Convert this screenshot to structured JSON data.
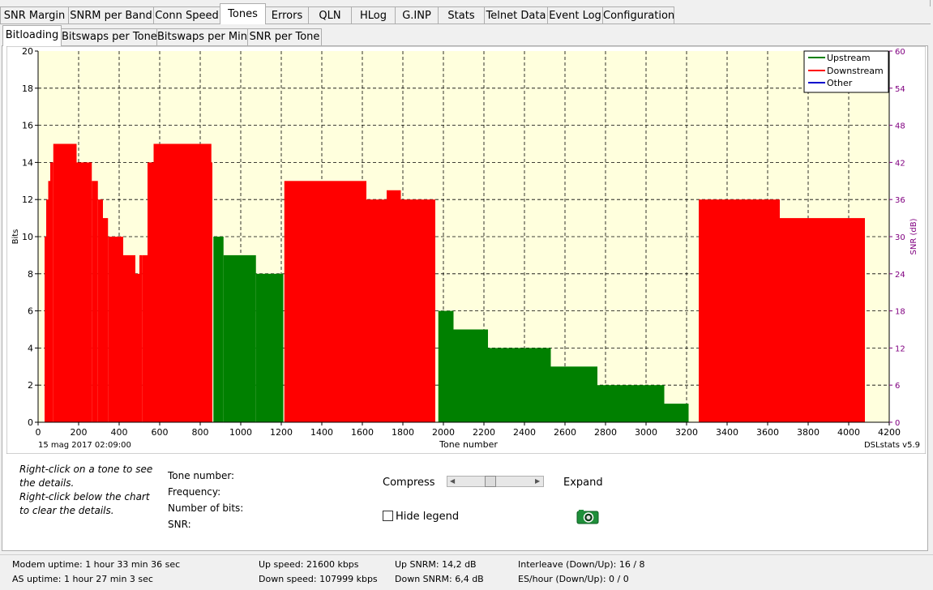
{
  "tabs": [
    {
      "label": "SNR Margin"
    },
    {
      "label": "SNRM per Band"
    },
    {
      "label": "Conn Speed"
    },
    {
      "label": "Tones"
    },
    {
      "label": "Errors"
    },
    {
      "label": "QLN"
    },
    {
      "label": "HLog"
    },
    {
      "label": "G.INP"
    },
    {
      "label": "Stats"
    },
    {
      "label": "Telnet Data"
    },
    {
      "label": "Event Log"
    },
    {
      "label": "Configuration"
    }
  ],
  "subtabs": [
    {
      "label": "Bitloading"
    },
    {
      "label": "Bitswaps per Tone"
    },
    {
      "label": "Bitswaps per Min"
    },
    {
      "label": "SNR per Tone"
    }
  ],
  "chart_data": {
    "type": "bar",
    "xlabel": "Tone number",
    "ylabel": "Bits",
    "y2label": "SNR (dB)",
    "xlim": [
      0,
      4200
    ],
    "ylim": [
      0,
      20
    ],
    "y2lim": [
      0,
      60
    ],
    "xticks": [
      "0",
      "200",
      "400",
      "600",
      "800",
      "1000",
      "1200",
      "1400",
      "1600",
      "1800",
      "2000",
      "2200",
      "2400",
      "2600",
      "2800",
      "3000",
      "3200",
      "3400",
      "3600",
      "3800",
      "4000",
      "4200"
    ],
    "yticks": [
      "0",
      "2",
      "4",
      "6",
      "8",
      "10",
      "12",
      "14",
      "16",
      "18",
      "20"
    ],
    "y2ticks": [
      "0",
      "6",
      "12",
      "18",
      "24",
      "30",
      "36",
      "42",
      "48",
      "54",
      "60"
    ],
    "grid": true,
    "legend_position": "top-right",
    "timestamp": "15 mag 2017 02:09:00",
    "watermark": "DSLstats v5.9",
    "colors": {
      "Upstream": "#008000",
      "Downstream": "#ff0000",
      "Other": "#0000cd",
      "background": "#ffffdd"
    },
    "series": [
      {
        "name": "Upstream",
        "segments": [
          [
            865,
            915,
            10
          ],
          [
            915,
            1075,
            9
          ],
          [
            1075,
            1210,
            8
          ],
          [
            1975,
            2050,
            6
          ],
          [
            2050,
            2220,
            5
          ],
          [
            2220,
            2530,
            4
          ],
          [
            2530,
            2760,
            3
          ],
          [
            2760,
            3090,
            2
          ],
          [
            3090,
            3210,
            1
          ]
        ]
      },
      {
        "name": "Downstream",
        "segments": [
          [
            32,
            40,
            10
          ],
          [
            40,
            50,
            12
          ],
          [
            50,
            60,
            13
          ],
          [
            60,
            75,
            14
          ],
          [
            75,
            190,
            15
          ],
          [
            190,
            265,
            14
          ],
          [
            265,
            295,
            13
          ],
          [
            295,
            320,
            12
          ],
          [
            320,
            345,
            11
          ],
          [
            345,
            380,
            10
          ],
          [
            380,
            420,
            10
          ],
          [
            420,
            480,
            9
          ],
          [
            480,
            500,
            8
          ],
          [
            500,
            515,
            9
          ],
          [
            515,
            540,
            9
          ],
          [
            540,
            570,
            14
          ],
          [
            570,
            855,
            15
          ],
          [
            840,
            860,
            14
          ],
          [
            1215,
            1620,
            13
          ],
          [
            1620,
            1720,
            12
          ],
          [
            1720,
            1790,
            12.5
          ],
          [
            1790,
            1960,
            12
          ],
          [
            3260,
            3660,
            12
          ],
          [
            3660,
            4080,
            11
          ]
        ]
      },
      {
        "name": "Other",
        "segments": []
      }
    ]
  },
  "details": {
    "hint1": "Right-click on a tone to see",
    "hint2": "the details.",
    "hint3": "Right-click below the chart",
    "hint4": "to clear the details.",
    "tone_label": "Tone number:",
    "freq_label": "Frequency:",
    "bits_label": "Number of bits:",
    "snr_label": "SNR:",
    "compress_label": "Compress",
    "expand_label": "Expand",
    "slider_value": 0.45,
    "hide_legend_label": "Hide legend",
    "hide_legend_checked": false,
    "snapshot_icon": "camera-icon"
  },
  "status": {
    "modem_uptime": "Modem uptime:  1 hour 33 min 36 sec",
    "as_uptime": "AS uptime:  1 hour 27 min 3 sec",
    "up_speed": "Up speed: 21600 kbps",
    "down_speed": "Down speed: 107999 kbps",
    "up_snrm": "Up SNRM: 14,2 dB",
    "down_snrm": "Down SNRM: 6,4 dB",
    "interleave": "Interleave (Down/Up): 16 / 8",
    "es_hour": "ES/hour (Down/Up): 0 / 0"
  }
}
